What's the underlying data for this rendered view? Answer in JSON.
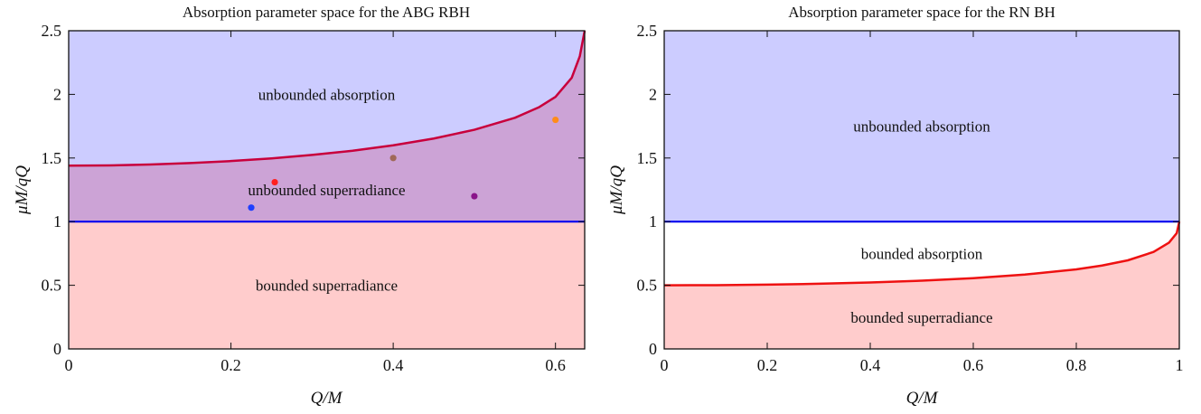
{
  "chart_data": [
    {
      "type": "area",
      "title": "Absorption parameter space for the ABG RBH",
      "xlabel": "Q/M",
      "ylabel": "μM/qQ",
      "xlim": [
        0,
        0.636
      ],
      "ylim": [
        0,
        2.5
      ],
      "xticks": [
        0,
        0.2,
        0.4,
        0.6
      ],
      "xtick_labels": [
        "0",
        "0.2",
        "0.4",
        "0.6"
      ],
      "yticks": [
        0,
        0.5,
        1,
        1.5,
        2,
        2.5
      ],
      "ytick_labels": [
        "0",
        "0.5",
        "1",
        "1.5",
        "2",
        "2.5"
      ],
      "grid": false,
      "colors": {
        "unbounded_absorption": "#ccccff",
        "unbounded_superradiance": "#cca3d6",
        "bounded_superradiance": "#ffcccc",
        "horizontal_line": "#0000ee",
        "curve": "#c8003c"
      },
      "series": [
        {
          "values": [
            [
              0,
              1.44
            ],
            [
              0.05,
              1.442
            ],
            [
              0.1,
              1.449
            ],
            [
              0.15,
              1.46
            ],
            [
              0.2,
              1.476
            ],
            [
              0.25,
              1.497
            ],
            [
              0.3,
              1.524
            ],
            [
              0.35,
              1.557
            ],
            [
              0.4,
              1.6
            ],
            [
              0.45,
              1.653
            ],
            [
              0.5,
              1.722
            ],
            [
              0.55,
              1.816
            ],
            [
              0.58,
              1.9
            ],
            [
              0.6,
              1.98
            ],
            [
              0.62,
              2.13
            ],
            [
              0.63,
              2.3
            ],
            [
              0.636,
              2.5
            ]
          ]
        },
        {
          "values": [
            [
              0,
              1
            ],
            [
              0.636,
              1
            ]
          ]
        }
      ],
      "points": [
        {
          "x": 0.225,
          "y": 1.11,
          "color": "#1f3fff"
        },
        {
          "x": 0.254,
          "y": 1.31,
          "color": "#ff2020"
        },
        {
          "x": 0.4,
          "y": 1.5,
          "color": "#a06858"
        },
        {
          "x": 0.5,
          "y": 1.2,
          "color": "#8a148a"
        },
        {
          "x": 0.6,
          "y": 1.8,
          "color": "#ff8c1a"
        }
      ],
      "annotations": [
        {
          "text": "unbounded absorption",
          "x": 0.318,
          "y": 2.0
        },
        {
          "text": "unbounded superradiance",
          "x": 0.318,
          "y": 1.25
        },
        {
          "text": "bounded superradiance",
          "x": 0.318,
          "y": 0.5
        }
      ]
    },
    {
      "type": "area",
      "title": "Absorption parameter space for the RN BH",
      "xlabel": "Q/M",
      "ylabel": "μM/qQ",
      "xlim": [
        0,
        1
      ],
      "ylim": [
        0,
        2.5
      ],
      "xticks": [
        0,
        0.2,
        0.4,
        0.6,
        0.8,
        1
      ],
      "xtick_labels": [
        "0",
        "0.2",
        "0.4",
        "0.6",
        "0.8",
        "1"
      ],
      "yticks": [
        0,
        0.5,
        1,
        1.5,
        2,
        2.5
      ],
      "ytick_labels": [
        "0",
        "0.5",
        "1",
        "1.5",
        "2",
        "2.5"
      ],
      "grid": false,
      "colors": {
        "unbounded_absorption": "#ccccff",
        "bounded_absorption": "#ffffff",
        "bounded_superradiance": "#ffcccc",
        "horizontal_line": "#0000ee",
        "curve": "#ee1111"
      },
      "series": [
        {
          "values": [
            [
              0,
              0.5
            ],
            [
              0.1,
              0.501
            ],
            [
              0.2,
              0.505
            ],
            [
              0.3,
              0.512
            ],
            [
              0.4,
              0.522
            ],
            [
              0.5,
              0.536
            ],
            [
              0.6,
              0.556
            ],
            [
              0.7,
              0.584
            ],
            [
              0.8,
              0.625
            ],
            [
              0.85,
              0.655
            ],
            [
              0.9,
              0.696
            ],
            [
              0.95,
              0.762
            ],
            [
              0.98,
              0.835
            ],
            [
              0.995,
              0.91
            ],
            [
              1,
              1
            ]
          ]
        },
        {
          "values": [
            [
              0,
              1
            ],
            [
              1,
              1
            ]
          ]
        }
      ],
      "points": [],
      "annotations": [
        {
          "text": "unbounded absorption",
          "x": 0.5,
          "y": 1.75
        },
        {
          "text": "bounded absorption",
          "x": 0.5,
          "y": 0.75
        },
        {
          "text": "bounded superradiance",
          "x": 0.5,
          "y": 0.25
        }
      ]
    }
  ]
}
